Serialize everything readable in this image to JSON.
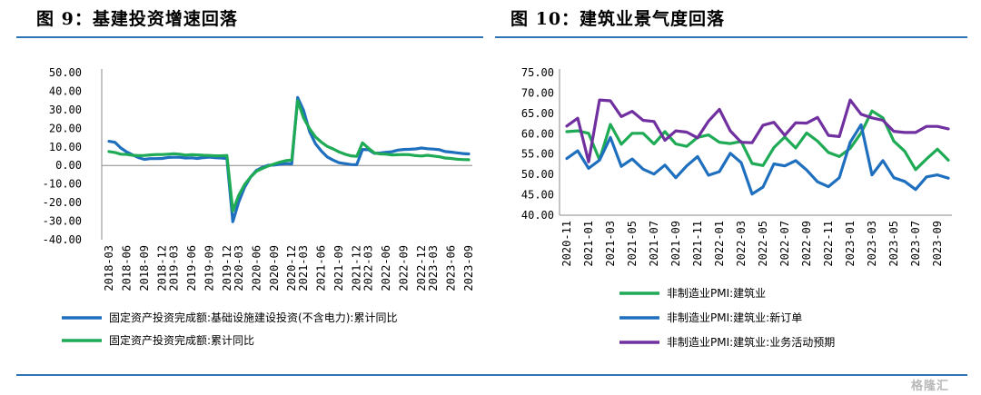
{
  "titles": {
    "left": "图 9：基建投资增速回落",
    "right": "图 10：建筑业景气度回落"
  },
  "watermark": "格隆汇",
  "chart_data": [
    {
      "type": "line",
      "x": [
        "2018-03",
        "2018-04",
        "2018-05",
        "2018-06",
        "2018-07",
        "2018-08",
        "2018-09",
        "2018-10",
        "2018-11",
        "2018-12",
        "2019-02",
        "2019-03",
        "2019-04",
        "2019-05",
        "2019-06",
        "2019-07",
        "2019-08",
        "2019-09",
        "2019-10",
        "2019-11",
        "2019-12",
        "2020-02",
        "2020-03",
        "2020-04",
        "2020-05",
        "2020-06",
        "2020-07",
        "2020-08",
        "2020-09",
        "2020-10",
        "2020-11",
        "2020-12",
        "2021-02",
        "2021-03",
        "2021-04",
        "2021-05",
        "2021-06",
        "2021-07",
        "2021-08",
        "2021-09",
        "2021-10",
        "2021-11",
        "2021-12",
        "2022-02",
        "2022-03",
        "2022-04",
        "2022-05",
        "2022-06",
        "2022-07",
        "2022-08",
        "2022-09",
        "2022-10",
        "2022-11",
        "2022-12",
        "2023-02",
        "2023-03",
        "2023-04",
        "2023-05",
        "2023-06",
        "2023-07",
        "2023-08",
        "2023-09"
      ],
      "xticks": [
        "2018-03",
        "2018-06",
        "2018-09",
        "2018-12",
        "2019-03",
        "2019-06",
        "2019-09",
        "2019-12",
        "2020-03",
        "2020-06",
        "2020-09",
        "2020-12",
        "2021-03",
        "2021-06",
        "2021-09",
        "2021-12",
        "2022-03",
        "2022-06",
        "2022-09",
        "2022-12",
        "2023-03",
        "2023-06",
        "2023-09"
      ],
      "ylim": [
        -40,
        50
      ],
      "yticks": [
        "50.00",
        "40.00",
        "30.00",
        "20.00",
        "10.00",
        "0.00",
        "-10.00",
        "-20.00",
        "-30.00",
        "-40.00"
      ],
      "legend_position": "bottom",
      "series": [
        {
          "name": "固定资产投资完成额:基础设施建设投资(不含电力):累计同比",
          "color": "#1f6fbf",
          "values": [
            13,
            12.5,
            9.4,
            7.3,
            5.7,
            4.2,
            3.3,
            3.7,
            3.7,
            3.8,
            4.3,
            4.4,
            4.4,
            4.0,
            4.1,
            3.8,
            4.2,
            4.5,
            4.2,
            4.0,
            3.8,
            -30.3,
            -19.7,
            -11.8,
            -6.3,
            -2.7,
            -1.0,
            0.1,
            0.2,
            0.7,
            1.0,
            0.9,
            36.6,
            29.7,
            18.4,
            11.8,
            7.8,
            4.6,
            2.9,
            1.5,
            1.0,
            0.5,
            0.4,
            8.6,
            8.5,
            6.5,
            6.7,
            7.1,
            7.4,
            8.3,
            8.6,
            8.7,
            8.9,
            9.4,
            9.0,
            8.8,
            8.5,
            7.5,
            7.2,
            6.8,
            6.4,
            6.2
          ]
        },
        {
          "name": "固定资产投资完成额:累计同比",
          "color": "#1faa55",
          "values": [
            7.5,
            7.0,
            6.1,
            6.0,
            5.5,
            5.3,
            5.4,
            5.7,
            5.9,
            5.9,
            6.1,
            6.3,
            6.1,
            5.6,
            5.8,
            5.7,
            5.5,
            5.4,
            5.2,
            5.2,
            5.4,
            -24.5,
            -16.1,
            -10.3,
            -6.3,
            -3.1,
            -1.6,
            -0.3,
            0.8,
            1.8,
            2.6,
            2.9,
            35.0,
            25.6,
            19.9,
            15.4,
            12.6,
            10.3,
            8.9,
            7.3,
            6.1,
            5.2,
            4.9,
            12.2,
            9.3,
            6.8,
            6.2,
            6.1,
            5.7,
            5.8,
            5.9,
            5.8,
            5.3,
            5.1,
            5.5,
            5.1,
            4.7,
            4.0,
            3.8,
            3.4,
            3.2,
            3.1
          ]
        }
      ]
    },
    {
      "type": "line",
      "x": [
        "2020-11",
        "2020-12",
        "2021-01",
        "2021-02",
        "2021-03",
        "2021-04",
        "2021-05",
        "2021-06",
        "2021-07",
        "2021-08",
        "2021-09",
        "2021-10",
        "2021-11",
        "2021-12",
        "2022-01",
        "2022-02",
        "2022-03",
        "2022-04",
        "2022-05",
        "2022-06",
        "2022-07",
        "2022-08",
        "2022-09",
        "2022-10",
        "2022-11",
        "2022-12",
        "2023-01",
        "2023-02",
        "2023-03",
        "2023-04",
        "2023-05",
        "2023-06",
        "2023-07",
        "2023-08",
        "2023-09",
        "2023-10"
      ],
      "xticks": [
        "2020-11",
        "2021-01",
        "2021-03",
        "2021-05",
        "2021-07",
        "2021-09",
        "2021-11",
        "2022-01",
        "2022-03",
        "2022-05",
        "2022-07",
        "2022-09",
        "2022-11",
        "2023-01",
        "2023-03",
        "2023-05",
        "2023-07",
        "2023-09"
      ],
      "ylim": [
        40,
        75
      ],
      "yticks": [
        "75.00",
        "70.00",
        "65.00",
        "60.00",
        "55.00",
        "50.00",
        "45.00",
        "40.00"
      ],
      "legend_position": "bottom",
      "series": [
        {
          "name": "非制造业PMI:建筑业",
          "color": "#1faa55",
          "values": [
            60.5,
            60.7,
            60.1,
            53.6,
            62.3,
            57.4,
            60.1,
            60.1,
            57.5,
            60.5,
            57.5,
            56.9,
            59.1,
            59.7,
            57.9,
            57.6,
            58.1,
            52.7,
            52.2,
            56.6,
            59.2,
            56.5,
            60.2,
            58.2,
            55.4,
            54.4,
            56.4,
            60.2,
            65.6,
            63.9,
            58.2,
            55.7,
            51.2,
            53.8,
            56.2,
            53.5
          ]
        },
        {
          "name": "非制造业PMI:建筑业:新订单",
          "color": "#1f6fbf",
          "values": [
            53.9,
            55.8,
            51.5,
            53.5,
            59.1,
            52.0,
            53.8,
            51.3,
            50.1,
            52.3,
            49.2,
            52.1,
            54.4,
            49.8,
            50.7,
            55.2,
            52.9,
            45.2,
            46.9,
            52.6,
            52.1,
            53.4,
            51.1,
            48.2,
            47.0,
            49.2,
            57.9,
            62.2,
            49.9,
            53.4,
            49.2,
            48.3,
            46.3,
            49.4,
            49.9,
            49.1
          ]
        },
        {
          "name": "非制造业PMI:建筑业:业务活动预期",
          "color": "#7030a0",
          "values": [
            61.9,
            63.8,
            53.1,
            68.3,
            68.1,
            64.2,
            65.5,
            63.3,
            63.0,
            58.4,
            60.7,
            60.4,
            59.0,
            63.1,
            66.0,
            60.7,
            57.9,
            57.8,
            62.1,
            62.8,
            59.6,
            62.7,
            62.6,
            64.0,
            59.6,
            59.3,
            68.3,
            64.8,
            63.9,
            63.3,
            60.6,
            60.3,
            60.3,
            61.8,
            61.8,
            61.2
          ]
        }
      ]
    }
  ]
}
